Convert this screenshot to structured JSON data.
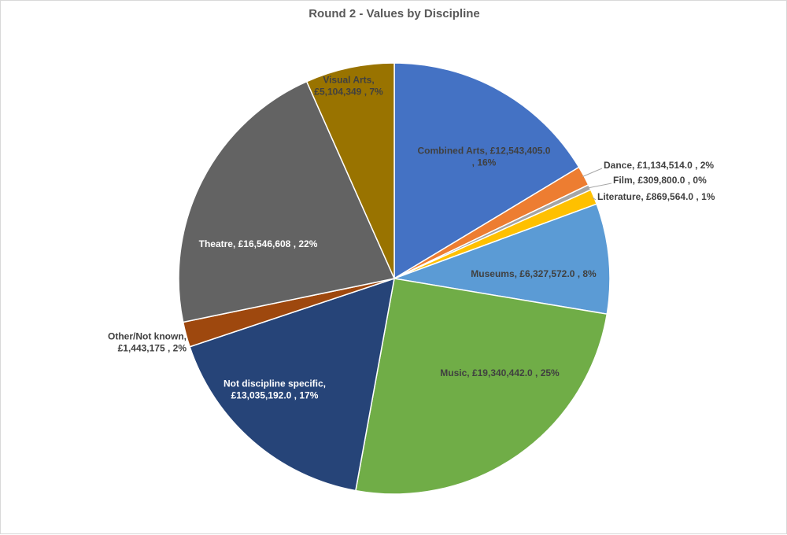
{
  "chart_data": {
    "type": "pie",
    "title": "Round 2 - Values by Discipline",
    "slices": [
      {
        "name": "Combined Arts",
        "value": 12543405.0,
        "percent_label": "16%",
        "label_lines": [
          "Combined Arts,  £12,543,405.0",
          ", 16%"
        ],
        "color": "#4472c4",
        "label_color": "#404040"
      },
      {
        "name": "Dance",
        "value": 1134514.0,
        "percent_label": "2%",
        "label_lines": [
          "Dance,  £1,134,514.0 , 2%"
        ],
        "color": "#ed7d31",
        "label_color": "#404040"
      },
      {
        "name": "Film",
        "value": 309800.0,
        "percent_label": "0%",
        "label_lines": [
          "Film,  £309,800.0 , 0%"
        ],
        "color": "#a5a5a5",
        "label_color": "#404040"
      },
      {
        "name": "Literature",
        "value": 869564.0,
        "percent_label": "1%",
        "label_lines": [
          "Literature,  £869,564.0 , 1%"
        ],
        "color": "#ffc000",
        "label_color": "#404040"
      },
      {
        "name": "Museums",
        "value": 6327572.0,
        "percent_label": "8%",
        "label_lines": [
          "Museums,  £6,327,572.0 , 8%"
        ],
        "color": "#5b9bd5",
        "label_color": "#404040"
      },
      {
        "name": "Music",
        "value": 19340442.0,
        "percent_label": "25%",
        "label_lines": [
          "Music,  £19,340,442.0 , 25%"
        ],
        "color": "#70ad47",
        "label_color": "#404040"
      },
      {
        "name": "Not discipline specific",
        "value": 13035192.0,
        "percent_label": "17%",
        "label_lines": [
          "Not discipline specific,",
          "£13,035,192.0 , 17%"
        ],
        "color": "#264478",
        "label_color": "#ffffff"
      },
      {
        "name": "Other/Not known",
        "value": 1443175,
        "percent_label": "2%",
        "label_lines": [
          "Other/Not known,",
          "£1,443,175 , 2%"
        ],
        "color": "#9e480e",
        "label_color": "#404040"
      },
      {
        "name": "Theatre",
        "value": 16546608,
        "percent_label": "22%",
        "label_lines": [
          "Theatre,  £16,546,608 , 22%"
        ],
        "color": "#636363",
        "label_color": "#ffffff"
      },
      {
        "name": "Visual Arts",
        "value": 5104349,
        "percent_label": "7%",
        "label_lines": [
          "Visual Arts,",
          "£5,104,349 , 7%"
        ],
        "color": "#997300",
        "label_color": "#404040"
      }
    ],
    "start": "12 o'clock",
    "direction": "clockwise",
    "legend": "none",
    "slice_border_color": "#ffffff"
  }
}
